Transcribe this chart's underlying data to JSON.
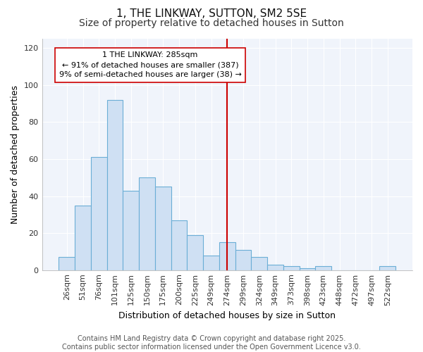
{
  "title1": "1, THE LINKWAY, SUTTON, SM2 5SE",
  "title2": "Size of property relative to detached houses in Sutton",
  "xlabel": "Distribution of detached houses by size in Sutton",
  "ylabel": "Number of detached properties",
  "categories": [
    "26sqm",
    "51sqm",
    "76sqm",
    "101sqm",
    "125sqm",
    "150sqm",
    "175sqm",
    "200sqm",
    "225sqm",
    "249sqm",
    "274sqm",
    "299sqm",
    "324sqm",
    "349sqm",
    "373sqm",
    "398sqm",
    "423sqm",
    "448sqm",
    "472sqm",
    "497sqm",
    "522sqm"
  ],
  "values": [
    7,
    35,
    61,
    92,
    43,
    50,
    45,
    27,
    19,
    8,
    15,
    11,
    7,
    3,
    2,
    1,
    2,
    0,
    0,
    0,
    2
  ],
  "bar_color": "#cfe0f3",
  "bar_edge_color": "#6baed6",
  "vline_x_index": 10,
  "vline_color": "#cc0000",
  "annotation_title": "1 THE LINKWAY: 285sqm",
  "annotation_line2": "← 91% of detached houses are smaller (387)",
  "annotation_line3": "9% of semi-detached houses are larger (38) →",
  "ylim": [
    0,
    125
  ],
  "yticks": [
    0,
    20,
    40,
    60,
    80,
    100,
    120
  ],
  "background_color": "#ffffff",
  "plot_bg_color": "#f0f4fb",
  "grid_color": "#ffffff",
  "annotation_box_color": "#ffffff",
  "annotation_box_edge": "#cc0000",
  "footer_text": "Contains HM Land Registry data © Crown copyright and database right 2025.\nContains public sector information licensed under the Open Government Licence v3.0.",
  "title_fontsize": 11,
  "subtitle_fontsize": 10,
  "axis_label_fontsize": 9,
  "tick_fontsize": 8,
  "annotation_fontsize": 8,
  "footer_fontsize": 7
}
